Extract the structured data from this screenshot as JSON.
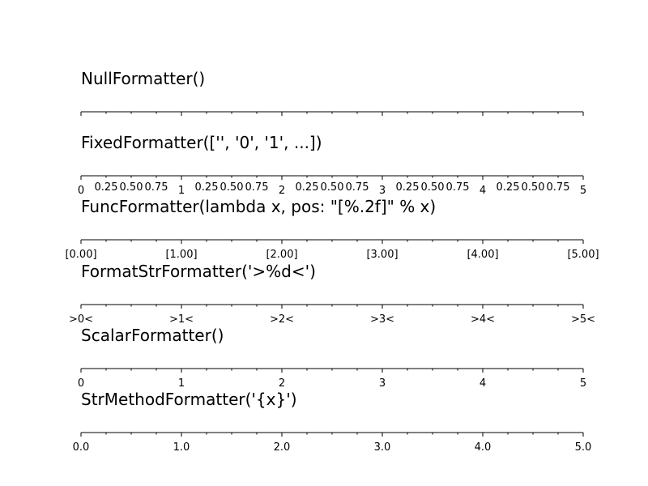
{
  "chart_data": [
    {
      "type": "axis",
      "title": "NullFormatter()",
      "xlim": [
        0,
        5
      ],
      "major_ticks": [
        0,
        1,
        2,
        3,
        4,
        5
      ],
      "minor_ticks": [
        0.25,
        0.5,
        0.75,
        1.25,
        1.5,
        1.75,
        2.25,
        2.5,
        2.75,
        3.25,
        3.5,
        3.75,
        4.25,
        4.5,
        4.75
      ],
      "major_labels": [],
      "minor_labels": []
    },
    {
      "type": "axis",
      "title": "FixedFormatter(['', '0', '1', ...])",
      "xlim": [
        0,
        5
      ],
      "major_ticks": [
        0,
        1,
        2,
        3,
        4,
        5
      ],
      "minor_ticks": [
        0.25,
        0.5,
        0.75,
        1.25,
        1.5,
        1.75,
        2.25,
        2.5,
        2.75,
        3.25,
        3.5,
        3.75,
        4.25,
        4.5,
        4.75
      ],
      "major_labels": [
        "0",
        "1",
        "2",
        "3",
        "4",
        "5"
      ],
      "minor_labels": [
        "0.25",
        "0.50",
        "0.75",
        "0.25",
        "0.50",
        "0.75",
        "0.25",
        "0.50",
        "0.75",
        "0.25",
        "0.50",
        "0.75",
        "0.25",
        "0.50",
        "0.75"
      ]
    },
    {
      "type": "axis",
      "title": "FuncFormatter(lambda x, pos: \"[%.2f]\" % x)",
      "xlim": [
        0,
        5
      ],
      "major_ticks": [
        0,
        1,
        2,
        3,
        4,
        5
      ],
      "minor_ticks": [
        0.25,
        0.5,
        0.75,
        1.25,
        1.5,
        1.75,
        2.25,
        2.5,
        2.75,
        3.25,
        3.5,
        3.75,
        4.25,
        4.5,
        4.75
      ],
      "major_labels": [
        "[0.00]",
        "[1.00]",
        "[2.00]",
        "[3.00]",
        "[4.00]",
        "[5.00]"
      ],
      "minor_labels": []
    },
    {
      "type": "axis",
      "title": "FormatStrFormatter('>%d<')",
      "xlim": [
        0,
        5
      ],
      "major_ticks": [
        0,
        1,
        2,
        3,
        4,
        5
      ],
      "minor_ticks": [
        0.25,
        0.5,
        0.75,
        1.25,
        1.5,
        1.75,
        2.25,
        2.5,
        2.75,
        3.25,
        3.5,
        3.75,
        4.25,
        4.5,
        4.75
      ],
      "major_labels": [
        ">0<",
        ">1<",
        ">2<",
        ">3<",
        ">4<",
        ">5<"
      ],
      "minor_labels": []
    },
    {
      "type": "axis",
      "title": "ScalarFormatter()",
      "xlim": [
        0,
        5
      ],
      "major_ticks": [
        0,
        1,
        2,
        3,
        4,
        5
      ],
      "minor_ticks": [
        0.25,
        0.5,
        0.75,
        1.25,
        1.5,
        1.75,
        2.25,
        2.5,
        2.75,
        3.25,
        3.5,
        3.75,
        4.25,
        4.5,
        4.75
      ],
      "major_labels": [
        "0",
        "1",
        "2",
        "3",
        "4",
        "5"
      ],
      "minor_labels": []
    },
    {
      "type": "axis",
      "title": "StrMethodFormatter('{x}')",
      "xlim": [
        0,
        5
      ],
      "major_ticks": [
        0,
        1,
        2,
        3,
        4,
        5
      ],
      "minor_ticks": [
        0.25,
        0.5,
        0.75,
        1.25,
        1.5,
        1.75,
        2.25,
        2.5,
        2.75,
        3.25,
        3.5,
        3.75,
        4.25,
        4.5,
        4.75
      ],
      "major_labels": [
        "0.0",
        "1.0",
        "2.0",
        "3.0",
        "4.0",
        "5.0"
      ],
      "minor_labels": []
    }
  ]
}
